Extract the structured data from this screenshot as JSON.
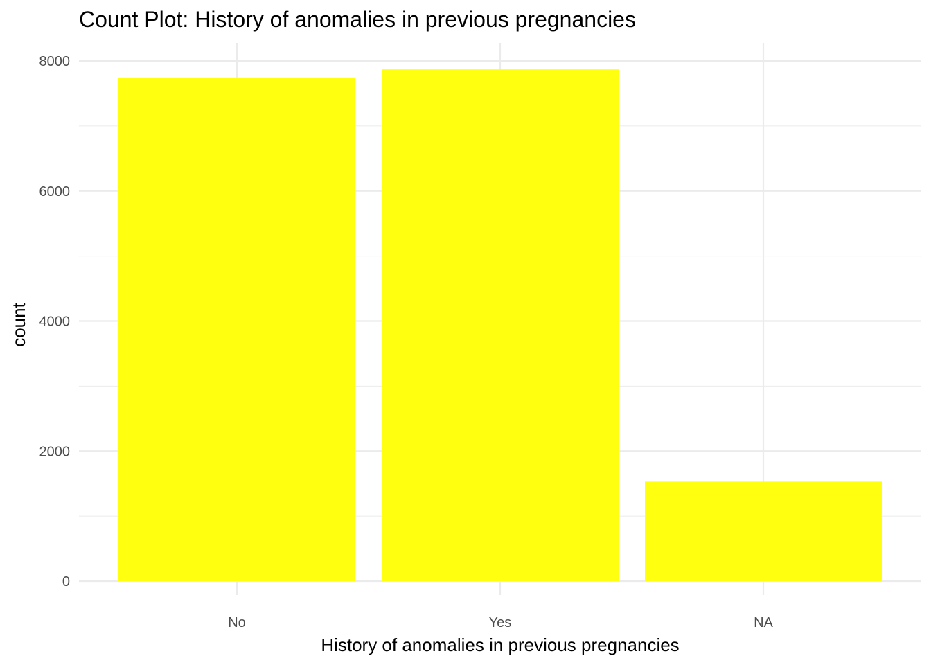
{
  "chart_data": {
    "type": "bar",
    "title": "Count Plot: History of anomalies in previous pregnancies",
    "xlabel": "History of anomalies in previous pregnancies",
    "ylabel": "count",
    "categories": [
      "No",
      "Yes",
      "NA"
    ],
    "values": [
      7740,
      7870,
      1530
    ],
    "ylim": [
      0,
      8000
    ],
    "yticks": [
      0,
      2000,
      4000,
      6000,
      8000
    ],
    "grid": true,
    "bar_color": "#FFFF0F",
    "grid_color": "#EBEBEB",
    "background": "#FFFFFF"
  }
}
